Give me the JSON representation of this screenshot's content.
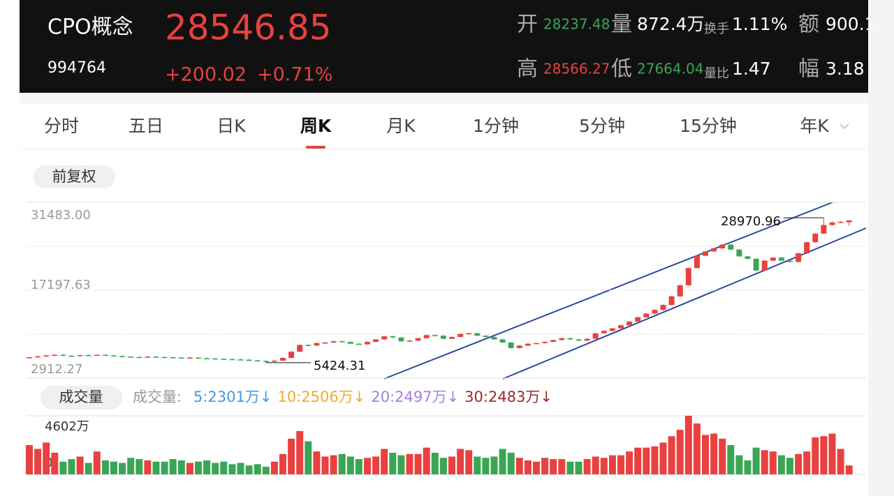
{
  "header": {
    "name": "CPO概念",
    "code": "994764",
    "price": "28546.85",
    "change": "+200.02",
    "change_pct": "+0.71%",
    "stats": [
      {
        "label": "开",
        "value": "28237.48"
      },
      {
        "label": "量",
        "value": "872.4万"
      },
      {
        "label": "换手",
        "value": "1.11%"
      },
      {
        "label": "额",
        "value": "900.1"
      },
      {
        "label": "高",
        "value": "28566.27"
      },
      {
        "label": "低",
        "value": "27664.04"
      },
      {
        "label": "量比",
        "value": "1.47"
      },
      {
        "label": "幅",
        "value": "3.18"
      }
    ]
  },
  "tabs": [
    "分时",
    "五日",
    "日K",
    "周K",
    "月K",
    "1分钟",
    "5分钟",
    "15分钟",
    "年K"
  ],
  "active_tab": "周K",
  "adjust": "前复权",
  "chart_data": [
    {
      "type": "candlestick",
      "ylim": [
        2912.27,
        31483
      ],
      "yticks": [
        {
          "value": 31483,
          "label": "31483.00"
        },
        17197.63,
        2912.27
      ],
      "up_color": "#e8413f",
      "down_color": "#3aa655",
      "grid": true,
      "min_label": "5424.31",
      "max_label": "28970.96",
      "open": [
        6200,
        6300,
        6450,
        6600,
        6700,
        6550,
        6500,
        6650,
        6600,
        6700,
        6600,
        6500,
        6400,
        6350,
        6300,
        6400,
        6350,
        6300,
        6250,
        6200,
        6250,
        6150,
        6100,
        6050,
        6000,
        5950,
        5900,
        5800,
        5700,
        5600,
        5750,
        6200,
        7200,
        8300,
        8200,
        8600,
        8700,
        8900,
        8800,
        8500,
        8400,
        8800,
        9200,
        9700,
        9500,
        8900,
        9000,
        9400,
        9900,
        9800,
        9300,
        9600,
        10100,
        10200,
        9800,
        9600,
        9200,
        8700,
        7800,
        8200,
        8500,
        8600,
        8800,
        9100,
        9400,
        9200,
        9000,
        9300,
        10200,
        10600,
        11000,
        11500,
        12100,
        12800,
        13400,
        14000,
        14800,
        16200,
        18000,
        20800,
        22800,
        23500,
        24000,
        24600,
        23800,
        22700,
        22300,
        20400,
        22000,
        22500,
        22000,
        21800,
        23200,
        25000,
        26400,
        27800,
        28200,
        28237.48
      ],
      "high": [
        6400,
        6550,
        6700,
        6800,
        6800,
        6650,
        6750,
        6750,
        6800,
        6800,
        6700,
        6600,
        6500,
        6450,
        6500,
        6500,
        6450,
        6400,
        6350,
        6350,
        6350,
        6250,
        6200,
        6150,
        6100,
        6050,
        6000,
        5900,
        5800,
        5850,
        6300,
        7300,
        8400,
        8400,
        8700,
        8800,
        9000,
        9000,
        8900,
        8600,
        8900,
        9300,
        9800,
        9800,
        9600,
        9100,
        9500,
        10000,
        10000,
        9900,
        9700,
        10200,
        10300,
        10300,
        9900,
        9700,
        9300,
        8800,
        8300,
        8600,
        8700,
        8900,
        9200,
        9500,
        9500,
        9300,
        9400,
        10300,
        10700,
        11100,
        11600,
        12200,
        12900,
        13500,
        14100,
        14900,
        16300,
        18100,
        20900,
        22900,
        23600,
        24100,
        24700,
        24700,
        23900,
        22800,
        22400,
        22100,
        22600,
        22600,
        22100,
        23300,
        25100,
        26500,
        28970.96,
        28400,
        28500,
        28566.27
      ],
      "low": [
        6100,
        6200,
        6350,
        6500,
        6450,
        6400,
        6400,
        6500,
        6500,
        6500,
        6400,
        6300,
        6250,
        6200,
        6200,
        6250,
        6200,
        6150,
        6100,
        6100,
        6050,
        6000,
        5950,
        5900,
        5850,
        5800,
        5700,
        5600,
        5424.31,
        5500,
        5650,
        6100,
        7100,
        8100,
        8100,
        8500,
        8600,
        8700,
        8400,
        8300,
        8300,
        8700,
        9100,
        9400,
        8800,
        8800,
        8900,
        9300,
        9700,
        9200,
        9200,
        9500,
        10000,
        9700,
        9500,
        9100,
        8600,
        7700,
        7700,
        8100,
        8400,
        8500,
        8700,
        9000,
        9100,
        8900,
        8900,
        9200,
        10100,
        10500,
        10900,
        11400,
        12000,
        12700,
        13300,
        13900,
        14700,
        16100,
        17900,
        20700,
        22700,
        23400,
        23900,
        23700,
        22600,
        22200,
        20300,
        20300,
        21900,
        21900,
        21700,
        21700,
        23100,
        24900,
        26300,
        27700,
        28100,
        27664.04
      ],
      "close": [
        6300,
        6450,
        6600,
        6700,
        6550,
        6500,
        6650,
        6600,
        6700,
        6600,
        6500,
        6400,
        6350,
        6300,
        6400,
        6350,
        6300,
        6250,
        6200,
        6250,
        6150,
        6100,
        6050,
        6000,
        5950,
        5900,
        5800,
        5700,
        5600,
        5750,
        6200,
        7200,
        8300,
        8200,
        8600,
        8700,
        8900,
        8800,
        8500,
        8400,
        8800,
        9200,
        9700,
        9500,
        8900,
        9000,
        9400,
        9900,
        9800,
        9300,
        9600,
        10100,
        10200,
        9800,
        9600,
        9200,
        8700,
        7800,
        8200,
        8500,
        8600,
        8800,
        9100,
        9400,
        9200,
        9000,
        9300,
        10200,
        10600,
        11000,
        11500,
        12100,
        12800,
        13400,
        14000,
        14800,
        16200,
        18000,
        20800,
        22800,
        23500,
        24000,
        24600,
        23800,
        22700,
        22300,
        20400,
        22000,
        22500,
        22000,
        21800,
        23200,
        25000,
        26400,
        27800,
        28200,
        28300,
        28546.85
      ]
    },
    {
      "type": "bar",
      "title": "成交量",
      "legend_title": "成交量:",
      "legend": [
        {
          "label": "5:2301万↓",
          "color": "#3d9be9"
        },
        {
          "label": "10:2506万↓",
          "color": "#f0a92a"
        },
        {
          "label": "20:2497万↓",
          "color": "#a37fe0"
        },
        {
          "label": "30:2483万↓",
          "color": "#9b2a2a"
        }
      ],
      "ylim": [
        0,
        4602
      ],
      "yticks": [
        {
          "value": 4602,
          "label": "4602万"
        },
        0
      ],
      "values": [
        2300,
        2000,
        2500,
        1700,
        1000,
        1200,
        1400,
        900,
        1800,
        1100,
        1000,
        900,
        1300,
        1200,
        1100,
        1000,
        1000,
        1200,
        1100,
        900,
        1000,
        1100,
        900,
        1000,
        800,
        900,
        700,
        800,
        600,
        1000,
        1600,
        2800,
        3400,
        2600,
        1800,
        1400,
        1500,
        1600,
        1400,
        1200,
        1300,
        1400,
        2000,
        1700,
        1500,
        1600,
        1600,
        2100,
        1700,
        1300,
        1400,
        2000,
        1900,
        1400,
        1300,
        1400,
        2000,
        1700,
        1300,
        1100,
        1000,
        1300,
        1200,
        1200,
        1000,
        1000,
        1200,
        1400,
        1300,
        1500,
        1500,
        1800,
        2100,
        2100,
        2200,
        2500,
        3000,
        3500,
        4602,
        4000,
        3100,
        3200,
        2800,
        2300,
        1500,
        1100,
        2100,
        1900,
        1800,
        1500,
        1300,
        1600,
        1800,
        2900,
        3000,
        3200,
        2000,
        700
      ]
    }
  ]
}
